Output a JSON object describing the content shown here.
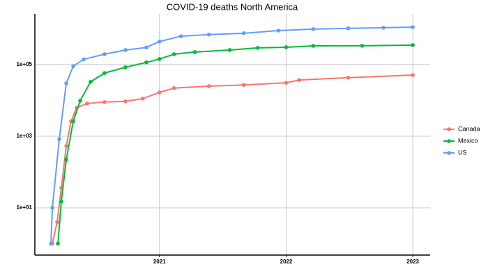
{
  "chart_data": {
    "type": "line",
    "title": "COVID-19 deaths North America",
    "log_y": true,
    "grid": true,
    "legend": "right",
    "xlim": [
      2020.016,
      2023.137
    ],
    "xticks": [
      2021,
      2022,
      2023
    ],
    "ylim": [
      0.48,
      2600000
    ],
    "yticks": [
      {
        "value": 10,
        "label": "1e+01"
      },
      {
        "value": 1000,
        "label": "1e+03"
      },
      {
        "value": 100000,
        "label": "1e+05"
      }
    ],
    "series": [
      {
        "name": "Canada",
        "color": "#F8766D",
        "x": [
          2020.154,
          2020.192,
          2020.225,
          2020.264,
          2020.302,
          2020.346,
          2020.429,
          2020.566,
          2020.731,
          2020.868,
          2021.0,
          2021.115,
          2021.39,
          2021.665,
          2022.0,
          2022.104,
          2022.49,
          2023.0
        ],
        "values": [
          1,
          4,
          36,
          530,
          2600,
          6200,
          8200,
          9000,
          9400,
          11200,
          16700,
          22000,
          25000,
          27000,
          31000,
          37000,
          43000,
          51000
        ]
      },
      {
        "name": "Mexico",
        "color": "#00BA38",
        "x": [
          2020.198,
          2020.225,
          2020.264,
          2020.319,
          2020.374,
          2020.456,
          2020.566,
          2020.731,
          2020.896,
          2021.0,
          2021.115,
          2021.28,
          2021.555,
          2021.775,
          2022.0,
          2022.214,
          2022.6,
          2023.0
        ],
        "values": [
          1,
          15,
          220,
          2600,
          9800,
          33000,
          58000,
          84000,
          115000,
          143000,
          195000,
          224000,
          255000,
          292000,
          305000,
          333000,
          335000,
          350000
        ]
      },
      {
        "name": "US",
        "color": "#619CFF",
        "x": [
          2020.143,
          2020.154,
          2020.209,
          2020.264,
          2020.319,
          2020.401,
          2020.566,
          2020.731,
          2020.896,
          2021.0,
          2021.17,
          2021.39,
          2021.665,
          2021.94,
          2022.214,
          2022.49,
          2022.769,
          2023.0
        ],
        "values": [
          1,
          10,
          830,
          30000,
          90000,
          140000,
          195000,
          255000,
          300000,
          440000,
          620000,
          690000,
          750000,
          890000,
          980000,
          1030000,
          1070000,
          1110000
        ]
      }
    ]
  }
}
